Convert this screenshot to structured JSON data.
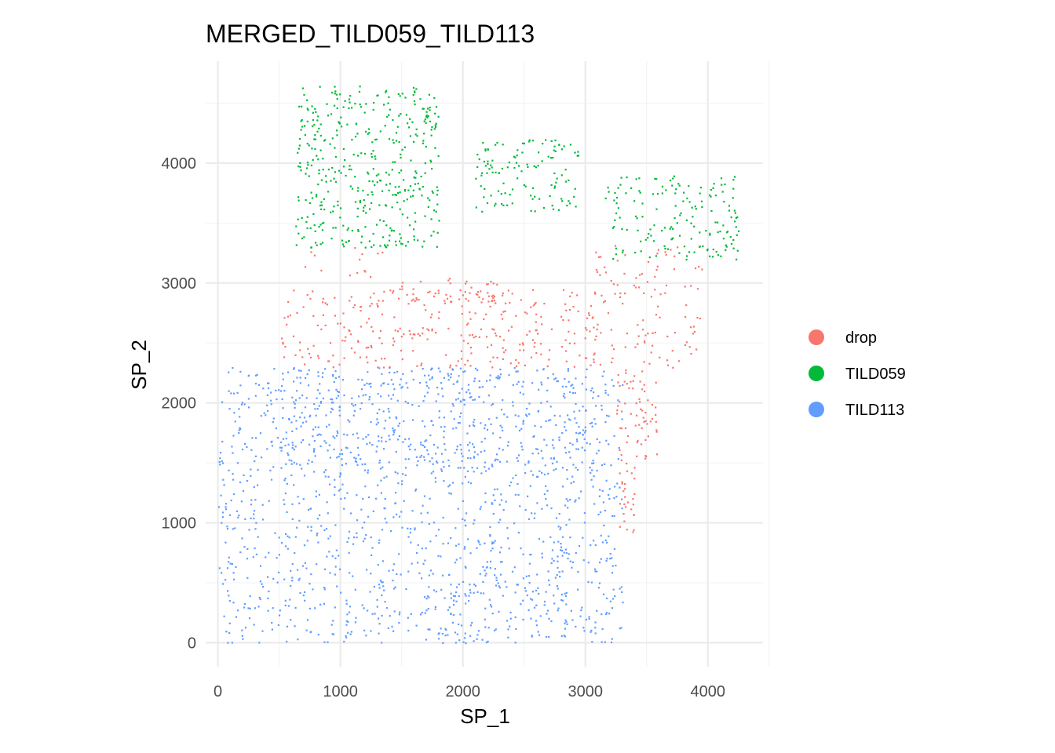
{
  "chart_data": {
    "type": "scatter",
    "title": "MERGED_TILD059_TILD113",
    "xlabel": "SP_1",
    "ylabel": "SP_2",
    "xlim": [
      -100,
      4450
    ],
    "ylim": [
      -200,
      4850
    ],
    "x_ticks": [
      0,
      1000,
      2000,
      3000,
      4000
    ],
    "x_tick_labels": [
      "0",
      "1000",
      "2000",
      "3000",
      "4000"
    ],
    "y_ticks": [
      0,
      1000,
      2000,
      3000,
      4000
    ],
    "y_tick_labels": [
      "0",
      "1000",
      "2000",
      "3000",
      "4000"
    ],
    "grid": true,
    "legend_position": "right",
    "series": [
      {
        "name": "drop",
        "color": "#F8766D",
        "regions": [
          {
            "x": [
              620,
              1400
            ],
            "y": [
              3000,
              3300
            ],
            "density": 0.01
          },
          {
            "x": [
              500,
              3100
            ],
            "y": [
              2300,
              2950
            ],
            "density": 0.03
          },
          {
            "x": [
              1400,
              2300
            ],
            "y": [
              2850,
              3050
            ],
            "density": 0.035
          },
          {
            "x": [
              3050,
              3950
            ],
            "y": [
              2300,
              3350
            ],
            "density": 0.02
          },
          {
            "x": [
              3250,
              3600
            ],
            "y": [
              1500,
              2300
            ],
            "density": 0.04
          },
          {
            "x": [
              3250,
              3400
            ],
            "y": [
              900,
              1500
            ],
            "density": 0.05
          }
        ]
      },
      {
        "name": "TILD059",
        "color": "#00BA38",
        "regions": [
          {
            "x": [
              630,
              1800
            ],
            "y": [
              3300,
              4650
            ],
            "density": 0.045
          },
          {
            "x": [
              2100,
              2950
            ],
            "y": [
              3600,
              4200
            ],
            "density": 0.04
          },
          {
            "x": [
              3150,
              4250
            ],
            "y": [
              3200,
              3900
            ],
            "density": 0.035
          }
        ]
      },
      {
        "name": "TILD113",
        "color": "#619CFF",
        "regions": [
          {
            "x": [
              0,
              3300
            ],
            "y": [
              0,
              2300
            ],
            "density": 0.028
          },
          {
            "x": [
              500,
              3100
            ],
            "y": [
              1400,
              2300
            ],
            "density": 0.02
          },
          {
            "x": [
              1700,
              2900
            ],
            "y": [
              0,
              900
            ],
            "density": 0.015
          }
        ]
      }
    ]
  }
}
